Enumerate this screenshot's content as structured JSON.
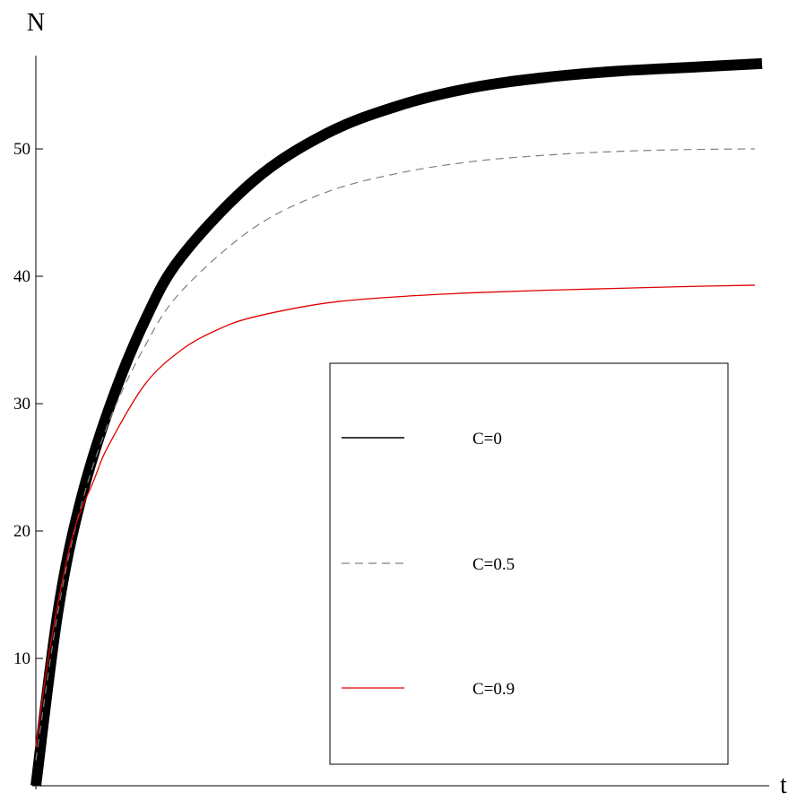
{
  "chart_data": {
    "type": "line",
    "xlabel": "t",
    "ylabel": "N",
    "xlim": [
      0,
      1
    ],
    "ylim": [
      0,
      57
    ],
    "y_ticks": [
      10,
      20,
      30,
      40,
      50
    ],
    "x_tick_labels_shown": false,
    "grid": false,
    "legend": {
      "placement": "bottom-right",
      "boxed": true
    },
    "series": [
      {
        "name": "C=0",
        "color": "#000000",
        "style": "solid-thick",
        "x": [
          0,
          0.03,
          0.06,
          0.1,
          0.15,
          0.2,
          0.3,
          0.4,
          0.5,
          0.6,
          0.7,
          0.8,
          0.9,
          1.0
        ],
        "y": [
          0,
          13.5,
          22,
          29.5,
          36.5,
          41.5,
          47.5,
          51.2,
          53.4,
          54.8,
          55.6,
          56.1,
          56.4,
          56.7
        ]
      },
      {
        "name": "C=0.5",
        "color": "#808080",
        "style": "dashed",
        "x": [
          0,
          0.03,
          0.06,
          0.1,
          0.15,
          0.2,
          0.3,
          0.4,
          0.5,
          0.6,
          0.7,
          0.8,
          0.9,
          0.99
        ],
        "y": [
          2,
          13.5,
          21.5,
          28.5,
          34.5,
          38.8,
          43.8,
          46.6,
          48.1,
          49,
          49.5,
          49.8,
          49.95,
          50
        ]
      },
      {
        "name": "C=0.9",
        "color": "#e00000",
        "style": "solid-thin",
        "x": [
          0,
          0.02,
          0.05,
          0.08,
          0.1,
          0.15,
          0.2,
          0.25,
          0.3,
          0.4,
          0.5,
          0.6,
          0.7,
          0.8,
          0.9,
          0.99
        ],
        "y": [
          3,
          11,
          19.5,
          24,
          26.7,
          31.5,
          34.2,
          35.8,
          36.8,
          37.9,
          38.4,
          38.7,
          38.9,
          39.05,
          39.2,
          39.3
        ]
      }
    ]
  }
}
